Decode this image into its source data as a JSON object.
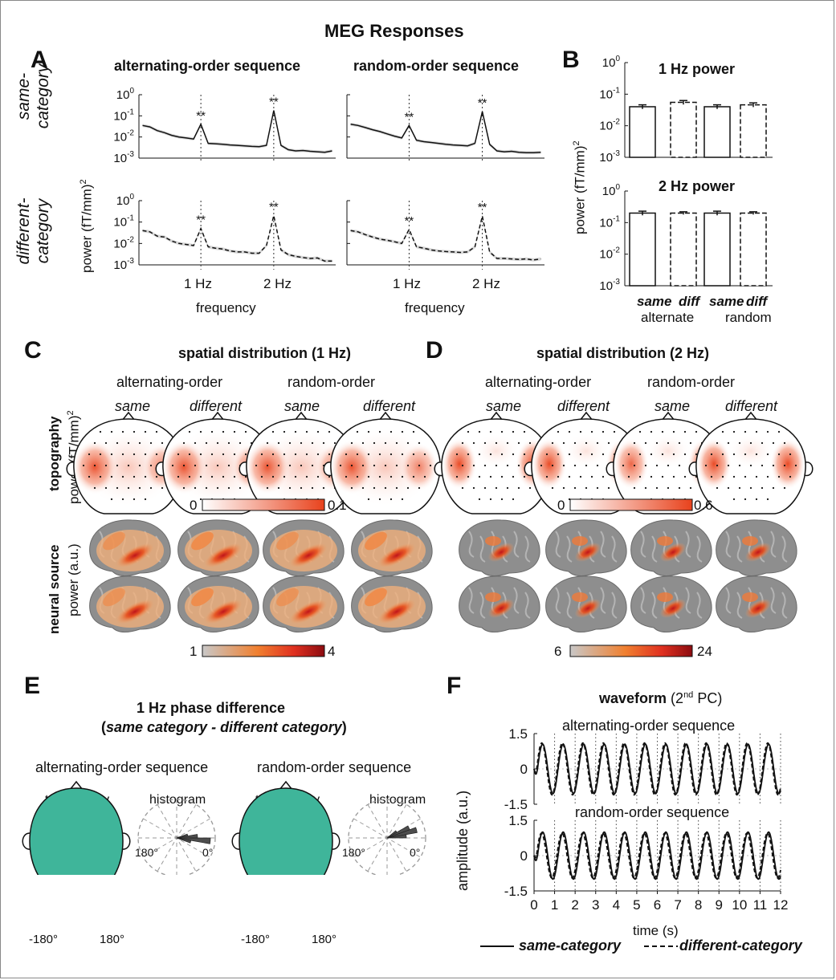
{
  "figure_title": "MEG Responses",
  "panel_labels": {
    "a": "A",
    "b": "B",
    "c": "C",
    "d": "D",
    "e": "E",
    "f": "F"
  },
  "panel_a": {
    "col_titles": [
      "alternating-order sequence",
      "random-order sequence"
    ],
    "row_labels": [
      "same-",
      "category",
      "different-",
      "category"
    ],
    "ylabel": "power (fT/mm)",
    "ylabel_sup": "2",
    "yticks": [
      "10",
      "10",
      "10",
      "10"
    ],
    "ytick_exps": [
      "0",
      "-1",
      "-2",
      "-3"
    ],
    "xticks": [
      "1 Hz",
      "2 Hz"
    ],
    "xlabel": "frequency",
    "sig": "**"
  },
  "chart_data": [
    {
      "type": "line",
      "title": "alternating-order sequence",
      "row": "same-category",
      "xlabel": "frequency",
      "ylabel": "power (fT/mm)^2",
      "yscale": "log",
      "ylim": [
        0.001,
        1
      ],
      "x": [
        0.2,
        0.3,
        0.4,
        0.5,
        0.6,
        0.7,
        0.8,
        0.9,
        1.0,
        1.1,
        1.2,
        1.3,
        1.4,
        1.5,
        1.6,
        1.7,
        1.8,
        1.9,
        2.0,
        2.1,
        2.2,
        2.3,
        2.4,
        2.5,
        2.6,
        2.7,
        2.8
      ],
      "series": [
        {
          "values": [
            0.035,
            0.03,
            0.02,
            0.016,
            0.012,
            0.01,
            0.009,
            0.008,
            0.04,
            0.005,
            0.0048,
            0.0045,
            0.0042,
            0.004,
            0.0038,
            0.0036,
            0.0035,
            0.004,
            0.18,
            0.004,
            0.0025,
            0.0022,
            0.0023,
            0.0021,
            0.002,
            0.0019,
            0.0022
          ]
        }
      ]
    },
    {
      "type": "line",
      "title": "random-order sequence",
      "row": "same-category",
      "xlabel": "frequency",
      "ylabel": "power (fT/mm)^2",
      "yscale": "log",
      "ylim": [
        0.001,
        1
      ],
      "x": [
        0.2,
        0.3,
        0.4,
        0.5,
        0.6,
        0.7,
        0.8,
        0.9,
        1.0,
        1.1,
        1.2,
        1.3,
        1.4,
        1.5,
        1.6,
        1.7,
        1.8,
        1.9,
        2.0,
        2.1,
        2.2,
        2.3,
        2.4,
        2.5,
        2.6,
        2.7,
        2.8
      ],
      "series": [
        {
          "values": [
            0.04,
            0.035,
            0.028,
            0.022,
            0.018,
            0.014,
            0.011,
            0.009,
            0.035,
            0.007,
            0.006,
            0.0055,
            0.005,
            0.0045,
            0.0042,
            0.004,
            0.0038,
            0.005,
            0.16,
            0.0045,
            0.0022,
            0.002,
            0.0021,
            0.0019,
            0.0018,
            0.0018,
            0.0019
          ]
        }
      ]
    },
    {
      "type": "line",
      "title": "alternating-order sequence",
      "row": "different-category",
      "xlabel": "frequency",
      "ylabel": "power (fT/mm)^2",
      "yscale": "log",
      "ylim": [
        0.001,
        1
      ],
      "x": [
        0.2,
        0.3,
        0.4,
        0.5,
        0.6,
        0.7,
        0.8,
        0.9,
        1.0,
        1.1,
        1.2,
        1.3,
        1.4,
        1.5,
        1.6,
        1.7,
        1.8,
        1.9,
        2.0,
        2.1,
        2.2,
        2.3,
        2.4,
        2.5,
        2.6,
        2.7,
        2.8
      ],
      "series": [
        {
          "values": [
            0.04,
            0.035,
            0.022,
            0.02,
            0.013,
            0.01,
            0.009,
            0.008,
            0.05,
            0.007,
            0.006,
            0.0055,
            0.0045,
            0.004,
            0.004,
            0.0035,
            0.0035,
            0.008,
            0.2,
            0.005,
            0.003,
            0.0025,
            0.0022,
            0.002,
            0.0021,
            0.0015,
            0.0015
          ]
        }
      ]
    },
    {
      "type": "line",
      "title": "random-order sequence",
      "row": "different-category",
      "xlabel": "frequency",
      "ylabel": "power (fT/mm)^2",
      "yscale": "log",
      "ylim": [
        0.001,
        1
      ],
      "x": [
        0.2,
        0.3,
        0.4,
        0.5,
        0.6,
        0.7,
        0.8,
        0.9,
        1.0,
        1.1,
        1.2,
        1.3,
        1.4,
        1.5,
        1.6,
        1.7,
        1.8,
        1.9,
        2.0,
        2.1,
        2.2,
        2.3,
        2.4,
        2.5,
        2.6,
        2.7,
        2.8
      ],
      "series": [
        {
          "values": [
            0.04,
            0.035,
            0.026,
            0.02,
            0.016,
            0.014,
            0.012,
            0.01,
            0.045,
            0.007,
            0.006,
            0.005,
            0.0045,
            0.0042,
            0.004,
            0.0038,
            0.004,
            0.007,
            0.19,
            0.004,
            0.002,
            0.002,
            0.0019,
            0.0018,
            0.0019,
            0.0017,
            0.0019
          ]
        }
      ]
    },
    {
      "type": "bar",
      "title": "1 Hz power",
      "ylabel": "power (fT/mm)^2",
      "yscale": "log",
      "ylim": [
        0.001,
        1
      ],
      "categories": [
        "same",
        "diff",
        "same",
        "diff"
      ],
      "groups": [
        "alternate",
        "random"
      ],
      "values": [
        0.04,
        0.055,
        0.04,
        0.046
      ],
      "errors": [
        0.006,
        0.008,
        0.006,
        0.007
      ]
    },
    {
      "type": "bar",
      "title": "2 Hz power",
      "ylabel": "power (fT/mm)^2",
      "yscale": "log",
      "ylim": [
        0.001,
        1
      ],
      "categories": [
        "same",
        "diff",
        "same",
        "diff"
      ],
      "groups": [
        "alternate",
        "random"
      ],
      "values": [
        0.2,
        0.2,
        0.2,
        0.2
      ],
      "errors": [
        0.03,
        0.02,
        0.03,
        0.02
      ]
    },
    {
      "type": "line",
      "title": "alternating-order sequence",
      "xlabel": "time (s)",
      "ylabel": "amplitude (a.u.)",
      "ylim": [
        -1.5,
        1.5
      ],
      "xlim": [
        0,
        12
      ],
      "series": [
        {
          "name": "same-category",
          "amplitude": 1.05,
          "freq_hz": 1.0,
          "phase_deg": -60
        },
        {
          "name": "different-category",
          "amplitude": 1.1,
          "freq_hz": 1.0,
          "phase_deg": -45
        }
      ]
    },
    {
      "type": "line",
      "title": "random-order sequence",
      "xlabel": "time (s)",
      "ylabel": "amplitude (a.u.)",
      "ylim": [
        -1.5,
        1.5
      ],
      "xlim": [
        0,
        12
      ],
      "series": [
        {
          "name": "same-category",
          "amplitude": 1.0,
          "freq_hz": 1.0,
          "phase_deg": -60
        },
        {
          "name": "different-category",
          "amplitude": 0.95,
          "freq_hz": 1.0,
          "phase_deg": -40
        }
      ]
    }
  ],
  "panel_b": {
    "title_1hz": "1 Hz power",
    "title_2hz": "2 Hz power",
    "ylabel": "power (fT/mm)",
    "ylabel_sup": "2",
    "cond": [
      "same",
      "diff",
      "same",
      "diff"
    ],
    "groups": [
      "alternate",
      "random"
    ]
  },
  "panel_c": {
    "title": "spatial distribution (1 Hz)",
    "orders": [
      "alternating-order",
      "random-order"
    ],
    "conds": [
      "same",
      "different",
      "same",
      "different"
    ],
    "row_topo": "topography",
    "row_topo_unit": "power (fT/mm)",
    "row_topo_sup": "2",
    "row_source": "neural source",
    "row_source_unit": "power (a.u.)",
    "cbar_topo": [
      "0",
      "0.1"
    ],
    "cbar_source": [
      "1",
      "4"
    ]
  },
  "panel_d": {
    "title": "spatial distribution (2 Hz)",
    "orders": [
      "alternating-order",
      "random-order"
    ],
    "conds": [
      "same",
      "different",
      "same",
      "different"
    ],
    "cbar_topo": [
      "0",
      "0.6"
    ],
    "cbar_source": [
      "6",
      "24"
    ]
  },
  "panel_e": {
    "title_line1": "1 Hz phase difference",
    "title_open": "(",
    "title_italic": "same category - different category",
    "title_close": ")",
    "seqs": [
      "alternating-order sequence",
      "random-order sequence"
    ],
    "sub": [
      "topography",
      "histogram",
      "topography",
      "histogram"
    ],
    "angles": [
      "180°",
      "0°"
    ],
    "cbar": [
      "-180°",
      "180°"
    ]
  },
  "panel_f": {
    "title_bold": "waveform",
    "title_rest_open": " (2",
    "title_sup": "nd",
    "title_rest_close": " PC)",
    "sub1": "alternating-order sequence",
    "sub2": "random-order sequence",
    "ylabel": "amplitude (a.u.)",
    "xlabel": "time (s)",
    "yticks": [
      "1.5",
      "0",
      "-1.5"
    ],
    "xticks": [
      "0",
      "1",
      "2",
      "3",
      "4",
      "5",
      "6",
      "7",
      "8",
      "9",
      "10",
      "11",
      "12"
    ]
  },
  "legend": {
    "same": "same-category",
    "different": "different-category"
  },
  "colors": {
    "topo_red": "#e8421c",
    "source_red": "#c0141a",
    "source_gray": "#8a8a8a",
    "phase_teal": "#3fb59a",
    "phase_yellow": "#f3c13a"
  }
}
